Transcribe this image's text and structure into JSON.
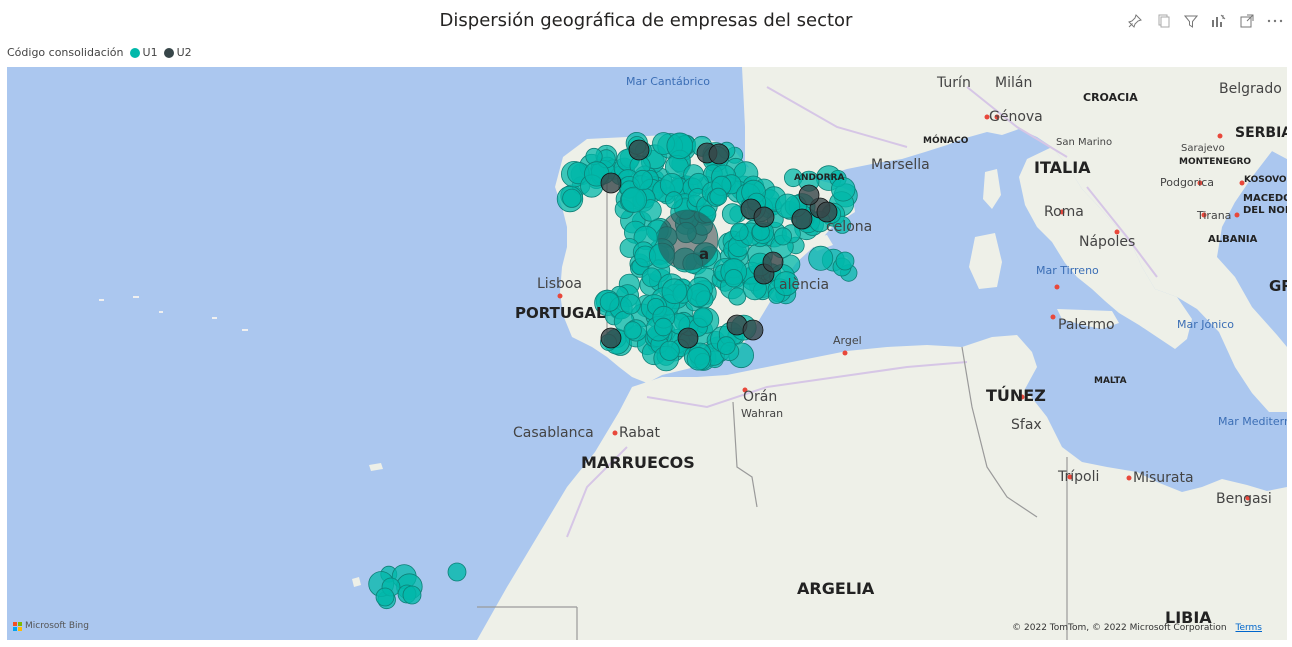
{
  "title": "Dispersión geográfica de empresas del sector",
  "legend": {
    "label": "Código consolidación",
    "items": [
      {
        "name": "U1",
        "color": "#01b8aa"
      },
      {
        "name": "U2",
        "color": "#374649"
      }
    ]
  },
  "toolbar": {
    "icons": [
      "pin-icon",
      "copy-icon",
      "filter-icon",
      "analytics-icon",
      "focus-mode-icon",
      "more-options-icon"
    ]
  },
  "map": {
    "labels": {
      "mar_cantabrico": "Mar Cantábrico",
      "turin": "Turín",
      "milan": "Milán",
      "genova": "Génova",
      "monaco": "MÓNACO",
      "san_marino": "San Marino",
      "croacia": "CROACIA",
      "belgrado": "Belgrado",
      "serbia": "SERBIA",
      "sarajevo": "Sarajevo",
      "montenegro": "MONTENEGRO",
      "podgorica": "Podgorica",
      "kosovo": "KOSOVO",
      "macedonia": "MACEDO",
      "del_norte": "DEL NOR",
      "tirana": "Tirana",
      "albania": "ALBANIA",
      "andorra": "ANDORRA",
      "marsella": "Marsella",
      "italia": "ITALIA",
      "roma": "Roma",
      "napoles": "Nápoles",
      "barcelona": "celona",
      "mar_tirreno": "Mar Tirreno",
      "lisboa": "Lisboa",
      "portugal": "PORTUGAL",
      "valencia": "alència",
      "gr": "GR",
      "palermo": "Palermo",
      "mar_jonico": "Mar Jónico",
      "argel": "Argel",
      "malta": "MALTA",
      "oran": "Orán",
      "wahran": "Wahran",
      "tunez": "TÚNEZ",
      "sfax": "Sfax",
      "mar_mediterraneo": "Mar Mediterrá",
      "casablanca": "Casablanca",
      "rabat": "Rabat",
      "marruecos": "MARRUECOS",
      "tripoli": "Trípoli",
      "misurata": "Misurata",
      "bengasi": "Bengasi",
      "argelia": "ARGELIA",
      "libia": "LIBIA",
      "madrid_fragment": "a"
    },
    "attribution": {
      "bing": "Microsoft Bing",
      "copyright": "© 2022 TomTom, © 2022 Microsoft Corporation",
      "terms": "Terms"
    }
  }
}
